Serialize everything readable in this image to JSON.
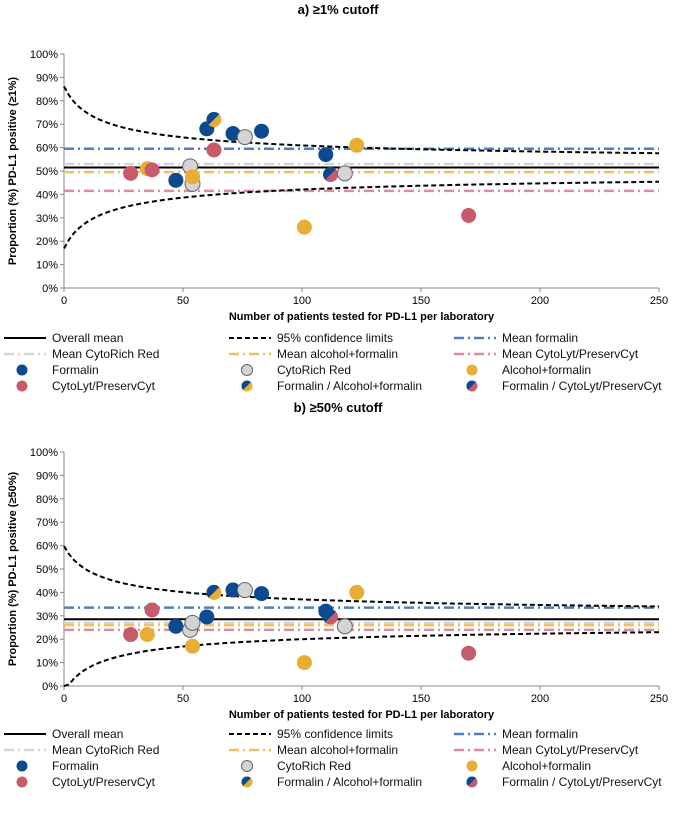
{
  "colors": {
    "formalin": "#0B4A8F",
    "cytorich": "#D4D4D4",
    "alcohol": "#E8AE34",
    "cytolyt": "#C75B6B",
    "mean_formalin": "#4E80BE",
    "mean_cytorich": "#D6D6D6",
    "mean_alcohol": "#EEC060",
    "mean_cytolyt": "#DC8C9A"
  },
  "chart_data": [
    {
      "type": "scatter",
      "title": "a) ≥1% cutoff",
      "xlabel": "Number of patients tested for PD-L1 per laboratory",
      "ylabel": "Proportion (%) PD-L1 positive (≥1%)",
      "xlim": [
        0,
        250
      ],
      "ylim": [
        0,
        100
      ],
      "xticks": [
        "0",
        "50",
        "100",
        "150",
        "200",
        "250"
      ],
      "yticks": [
        "0%",
        "10%",
        "20%",
        "30%",
        "40%",
        "50%",
        "60%",
        "70%",
        "80%",
        "90%",
        "100%"
      ],
      "means": {
        "overall": 51.5,
        "formalin": 59.5,
        "cytorich": 53,
        "alcohol": 49.5,
        "cytolyt": 41.5
      },
      "ci_n_min": 8,
      "points": [
        {
          "x": 28,
          "y": 49,
          "g": "cytolyt"
        },
        {
          "x": 35,
          "y": 51,
          "g": "alcohol"
        },
        {
          "x": 37,
          "y": 50.5,
          "g": "cytolyt"
        },
        {
          "x": 47,
          "y": 46,
          "g": "formalin"
        },
        {
          "x": 53,
          "y": 52,
          "g": "cytorich"
        },
        {
          "x": 54,
          "y": 44.5,
          "g": "cytorich"
        },
        {
          "x": 54,
          "y": 47.5,
          "g": "alcohol"
        },
        {
          "x": 60,
          "y": 68,
          "g": "formalin"
        },
        {
          "x": 63,
          "y": 72,
          "g": "formalin_alcohol"
        },
        {
          "x": 63,
          "y": 59,
          "g": "cytolyt"
        },
        {
          "x": 71,
          "y": 66,
          "g": "formalin"
        },
        {
          "x": 76,
          "y": 64.5,
          "g": "cytorich"
        },
        {
          "x": 83,
          "y": 67,
          "g": "formalin"
        },
        {
          "x": 101,
          "y": 26,
          "g": "alcohol"
        },
        {
          "x": 110,
          "y": 57,
          "g": "formalin"
        },
        {
          "x": 112,
          "y": 48.5,
          "g": "formalin_cytolyt"
        },
        {
          "x": 118,
          "y": 49,
          "g": "cytorich"
        },
        {
          "x": 123,
          "y": 61,
          "g": "alcohol"
        },
        {
          "x": 170,
          "y": 31,
          "g": "cytolyt"
        }
      ]
    },
    {
      "type": "scatter",
      "title": "b) ≥50% cutoff",
      "xlabel": "Number of patients tested for PD-L1 per laboratory",
      "ylabel": "Proportion (%) PD-L1 positive (≥50%)",
      "xlim": [
        0,
        250
      ],
      "ylim": [
        0,
        100
      ],
      "xticks": [
        "0",
        "50",
        "100",
        "150",
        "200",
        "250"
      ],
      "yticks": [
        "0%",
        "10%",
        "20%",
        "30%",
        "40%",
        "50%",
        "60%",
        "70%",
        "80%",
        "90%",
        "100%"
      ],
      "means": {
        "overall": 28.5,
        "formalin": 33.5,
        "cytorich": 27,
        "alcohol": 26,
        "cytolyt": 24
      },
      "ci_n_min": 8,
      "points": [
        {
          "x": 28,
          "y": 22,
          "g": "cytolyt"
        },
        {
          "x": 35,
          "y": 22,
          "g": "alcohol"
        },
        {
          "x": 37,
          "y": 32.5,
          "g": "cytolyt"
        },
        {
          "x": 47,
          "y": 25.5,
          "g": "formalin"
        },
        {
          "x": 53,
          "y": 24,
          "g": "cytorich"
        },
        {
          "x": 54,
          "y": 27,
          "g": "cytorich"
        },
        {
          "x": 54,
          "y": 17,
          "g": "alcohol"
        },
        {
          "x": 60,
          "y": 29.5,
          "g": "formalin"
        },
        {
          "x": 63,
          "y": 40,
          "g": "formalin_alcohol"
        },
        {
          "x": 71,
          "y": 41,
          "g": "formalin"
        },
        {
          "x": 76,
          "y": 41,
          "g": "cytorich"
        },
        {
          "x": 83,
          "y": 39.5,
          "g": "formalin"
        },
        {
          "x": 101,
          "y": 10,
          "g": "alcohol"
        },
        {
          "x": 110,
          "y": 32,
          "g": "formalin"
        },
        {
          "x": 112,
          "y": 29.5,
          "g": "formalin_cytolyt"
        },
        {
          "x": 118,
          "y": 25.5,
          "g": "cytorich"
        },
        {
          "x": 123,
          "y": 40,
          "g": "alcohol"
        },
        {
          "x": 170,
          "y": 14,
          "g": "cytolyt"
        }
      ]
    }
  ],
  "legend": [
    {
      "label": "Overall mean",
      "kind": "line",
      "key": "overall"
    },
    {
      "label": "95% confidence limits",
      "kind": "line",
      "key": "ci"
    },
    {
      "label": "Mean formalin",
      "kind": "line",
      "key": "formalin"
    },
    {
      "label": "Mean CytoRich Red",
      "kind": "line",
      "key": "cytorich"
    },
    {
      "label": "Mean alcohol+formalin",
      "kind": "line",
      "key": "alcohol"
    },
    {
      "label": "Mean CytoLyt/PreservCyt",
      "kind": "line",
      "key": "cytolyt"
    },
    {
      "label": "Formalin",
      "kind": "dot",
      "key": "formalin"
    },
    {
      "label": "CytoRich Red",
      "kind": "dot",
      "key": "cytorich"
    },
    {
      "label": "Alcohol+formalin",
      "kind": "dot",
      "key": "alcohol"
    },
    {
      "label": "CytoLyt/PreservCyt",
      "kind": "dot",
      "key": "cytolyt"
    },
    {
      "label": "Formalin / Alcohol+formalin",
      "kind": "dot",
      "key": "formalin_alcohol"
    },
    {
      "label": "Formalin / CytoLyt/PreservCyt",
      "kind": "dot",
      "key": "formalin_cytolyt"
    }
  ]
}
